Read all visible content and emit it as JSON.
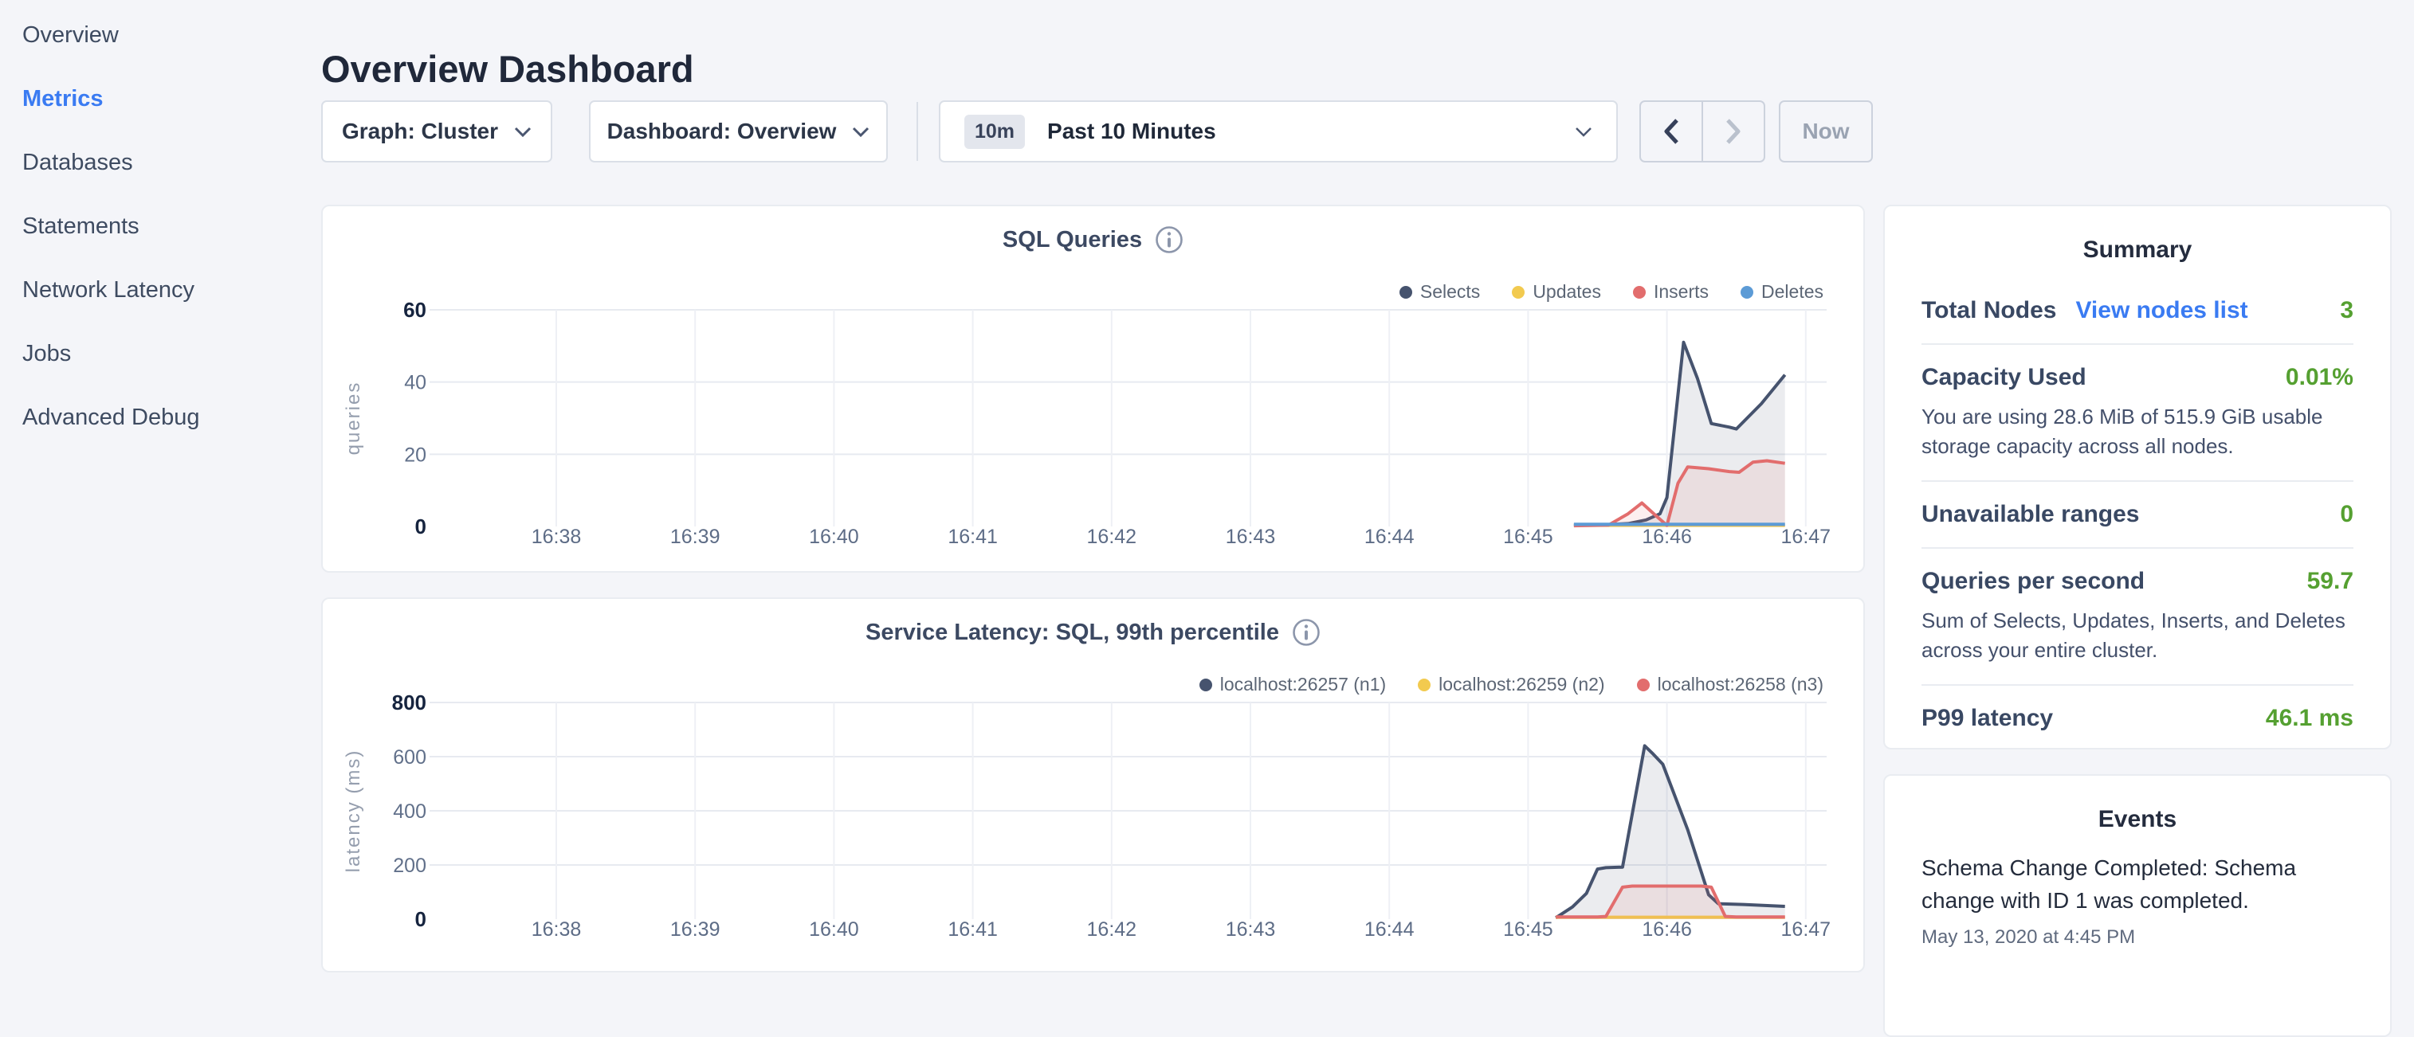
{
  "sidebar": {
    "items": [
      {
        "label": "Overview",
        "active": false
      },
      {
        "label": "Metrics",
        "active": true
      },
      {
        "label": "Databases",
        "active": false
      },
      {
        "label": "Statements",
        "active": false
      },
      {
        "label": "Network Latency",
        "active": false
      },
      {
        "label": "Jobs",
        "active": false
      },
      {
        "label": "Advanced Debug",
        "active": false
      }
    ]
  },
  "header": {
    "title": "Overview Dashboard"
  },
  "controls": {
    "graph": {
      "label": "Graph: Cluster"
    },
    "dashboard": {
      "label": "Dashboard: Overview"
    },
    "time": {
      "badge": "10m",
      "label": "Past 10 Minutes"
    },
    "now_label": "Now"
  },
  "colors": {
    "accent_blue": "#3a7bf2",
    "value_green": "#55a031"
  },
  "chart_data": [
    {
      "type": "area",
      "title": "SQL Queries",
      "ylabel": "queries",
      "ylim": [
        0,
        60
      ],
      "yticks": [
        0,
        20,
        40,
        60
      ],
      "xticks": [
        "16:38",
        "16:39",
        "16:40",
        "16:41",
        "16:42",
        "16:43",
        "16:44",
        "16:45",
        "16:46",
        "16:47"
      ],
      "grid": true,
      "legend_position": "top-right",
      "series": [
        {
          "name": "Selects",
          "color": "#46536e",
          "points": [
            [
              45.33,
              0.4
            ],
            [
              45.55,
              0.5
            ],
            [
              45.72,
              0.8
            ],
            [
              45.85,
              1.8
            ],
            [
              45.95,
              3.5
            ],
            [
              46.0,
              8
            ],
            [
              46.12,
              51
            ],
            [
              46.22,
              41
            ],
            [
              46.32,
              28.5
            ],
            [
              46.45,
              27.5
            ],
            [
              46.5,
              27
            ],
            [
              46.68,
              34
            ],
            [
              46.85,
              42
            ]
          ]
        },
        {
          "name": "Updates",
          "color": "#f2ca4f",
          "points": [
            [
              45.33,
              0.3
            ],
            [
              46.85,
              0.3
            ]
          ]
        },
        {
          "name": "Inserts",
          "color": "#e26d6d",
          "points": [
            [
              45.33,
              0.2
            ],
            [
              45.58,
              0.4
            ],
            [
              45.72,
              3.5
            ],
            [
              45.82,
              6.5
            ],
            [
              45.92,
              3
            ],
            [
              46.0,
              0.3
            ],
            [
              46.08,
              12
            ],
            [
              46.15,
              16.5
            ],
            [
              46.3,
              16
            ],
            [
              46.45,
              15.2
            ],
            [
              46.52,
              15
            ],
            [
              46.62,
              17.8
            ],
            [
              46.72,
              18.2
            ],
            [
              46.85,
              17.5
            ]
          ]
        },
        {
          "name": "Deletes",
          "color": "#5c9bd6",
          "points": [
            [
              45.33,
              0.6
            ],
            [
              46.85,
              0.6
            ]
          ]
        }
      ]
    },
    {
      "type": "area",
      "title": "Service Latency: SQL, 99th percentile",
      "ylabel": "latency (ms)",
      "ylim": [
        0,
        800
      ],
      "yticks": [
        0,
        200,
        400,
        600,
        800
      ],
      "xticks": [
        "16:38",
        "16:39",
        "16:40",
        "16:41",
        "16:42",
        "16:43",
        "16:44",
        "16:45",
        "16:46",
        "16:47"
      ],
      "grid": true,
      "legend_position": "top-right",
      "series": [
        {
          "name": "localhost:26257 (n1)",
          "color": "#46536e",
          "points": [
            [
              45.2,
              5
            ],
            [
              45.32,
              45
            ],
            [
              45.42,
              95
            ],
            [
              45.5,
              185
            ],
            [
              45.56,
              190
            ],
            [
              45.68,
              192
            ],
            [
              45.84,
              640
            ],
            [
              45.9,
              610
            ],
            [
              45.97,
              572
            ],
            [
              46.15,
              330
            ],
            [
              46.3,
              90
            ],
            [
              46.37,
              57
            ],
            [
              46.55,
              54
            ],
            [
              46.85,
              47
            ]
          ]
        },
        {
          "name": "localhost:26259 (n2)",
          "color": "#f2ca4f",
          "points": [
            [
              45.2,
              7
            ],
            [
              46.85,
              7
            ]
          ]
        },
        {
          "name": "localhost:26258 (n3)",
          "color": "#e26d6d",
          "points": [
            [
              45.2,
              8
            ],
            [
              45.5,
              8
            ],
            [
              45.56,
              10
            ],
            [
              45.68,
              118
            ],
            [
              45.75,
              122
            ],
            [
              46.25,
              122
            ],
            [
              46.32,
              118
            ],
            [
              46.42,
              10
            ],
            [
              46.5,
              8
            ],
            [
              46.85,
              8
            ]
          ]
        }
      ]
    }
  ],
  "summary": {
    "heading": "Summary",
    "total_nodes": {
      "label": "Total Nodes",
      "link": "View nodes list",
      "value": "3"
    },
    "capacity": {
      "label": "Capacity Used",
      "value": "0.01%",
      "description": "You are using 28.6 MiB of 515.9 GiB usable storage capacity across all nodes."
    },
    "unavailable": {
      "label": "Unavailable ranges",
      "value": "0"
    },
    "qps": {
      "label": "Queries per second",
      "value": "59.7",
      "description": "Sum of Selects, Updates, Inserts, and Deletes across your entire cluster."
    },
    "p99": {
      "label": "P99 latency",
      "value": "46.1 ms"
    }
  },
  "events": {
    "heading": "Events",
    "items": [
      {
        "text": "Schema Change Completed: Schema change with ID 1 was completed.",
        "time": "May 13, 2020 at 4:45 PM"
      }
    ]
  }
}
